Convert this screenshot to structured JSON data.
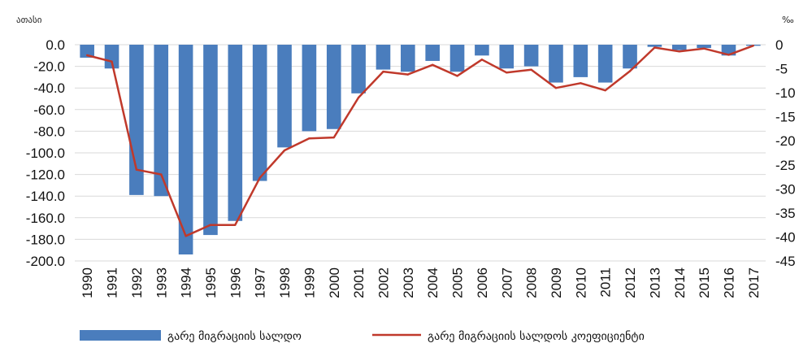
{
  "chart_data": {
    "type": "bar",
    "title": "",
    "xlabel": "",
    "categories": [
      "1990",
      "1991",
      "1992",
      "1993",
      "1994",
      "1995",
      "1996",
      "1997",
      "1998",
      "1999",
      "2000",
      "2001",
      "2002",
      "2003",
      "2004",
      "2005",
      "2006",
      "2007",
      "2008",
      "2009",
      "2010",
      "2011",
      "2012",
      "2013",
      "2014",
      "2015",
      "2016",
      "2017"
    ],
    "left_axis": {
      "unit_label": "ათასი",
      "ylim": [
        -200,
        0
      ],
      "ticks": [
        "0.0",
        "-20.0",
        "-40.0",
        "-60.0",
        "-80.0",
        "-100.0",
        "-120.0",
        "-140.0",
        "-160.0",
        "-180.0",
        "-200.0"
      ]
    },
    "right_axis": {
      "unit_label": "‰",
      "ylim": [
        -45,
        0
      ],
      "ticks": [
        "0",
        "-5",
        "-10",
        "-15",
        "-20",
        "-25",
        "-30",
        "-35",
        "-40",
        "-45"
      ]
    },
    "series": [
      {
        "name": "გარე მიგრაციის სალდო",
        "type": "bar",
        "axis": "left",
        "color": "#4a7dbd",
        "values": [
          -12,
          -22,
          -139,
          -140,
          -194,
          -176,
          -163,
          -126,
          -95,
          -80,
          -78,
          -45,
          -23,
          -25,
          -15,
          -25,
          -10,
          -22,
          -20,
          -35,
          -30,
          -35,
          -22,
          -2,
          -5,
          -3,
          -10,
          -1
        ]
      },
      {
        "name": "გარე მიგრაციის სალდოს კოეფიციენტი",
        "type": "line",
        "axis": "right",
        "color": "#c0392b",
        "values": [
          -2.2,
          -3.5,
          -26.0,
          -27.0,
          -39.8,
          -37.5,
          -37.5,
          -27.7,
          -22.0,
          -19.5,
          -19.3,
          -11.0,
          -5.6,
          -6.2,
          -4.2,
          -6.5,
          -3.1,
          -5.8,
          -5.2,
          -9.0,
          -8.0,
          -9.5,
          -5.5,
          -0.6,
          -1.4,
          -0.8,
          -2.1,
          -0.2
        ]
      }
    ],
    "grid": true,
    "legend_position": "bottom"
  }
}
